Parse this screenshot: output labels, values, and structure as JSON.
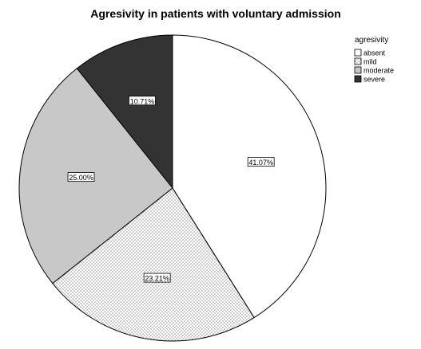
{
  "chart_data": {
    "type": "pie",
    "title": "Agresivity in patients with voluntary admission",
    "legend_title": "agresivity",
    "legend_position": "top-right",
    "start_angle_deg": 0,
    "direction": "clockwise",
    "slices": [
      {
        "name": "absent",
        "value": 41.07,
        "label": "41.07%",
        "fill": "#ffffff",
        "pattern": "none"
      },
      {
        "name": "mild",
        "value": 23.21,
        "label": "23.21%",
        "fill": "#ffffff",
        "pattern": "dots"
      },
      {
        "name": "moderate",
        "value": 25.0,
        "label": "25.00%",
        "fill": "#c8c8c8",
        "pattern": "none"
      },
      {
        "name": "severe",
        "value": 10.71,
        "label": "10.71%",
        "fill": "#333333",
        "pattern": "none"
      }
    ]
  }
}
